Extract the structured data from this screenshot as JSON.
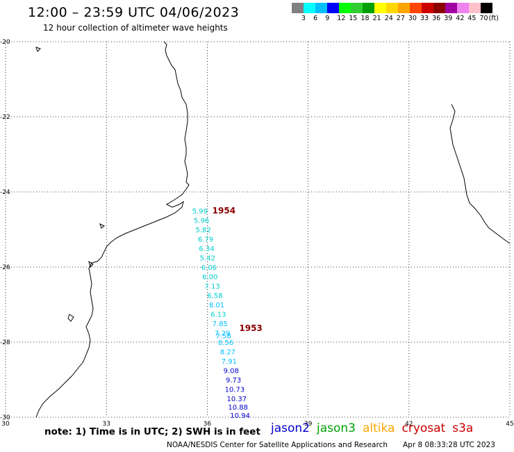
{
  "header": {
    "title": "12:00 – 23:59 UTC 04/06/2023",
    "subtitle": "12 hour collection of altimeter wave heights"
  },
  "legend": {
    "unit": "(ft)",
    "colors": [
      "#808080",
      "#00ffff",
      "#00bfff",
      "#0000ff",
      "#00ff00",
      "#32cd32",
      "#00a000",
      "#ffff00",
      "#ffd700",
      "#ffa500",
      "#ff4500",
      "#cc0000",
      "#8b0000",
      "#a000a0",
      "#ee82ee",
      "#ffc0cb",
      "#000000"
    ],
    "labels": [
      "3",
      "6",
      "9",
      "12",
      "15",
      "18",
      "21",
      "24",
      "27",
      "30",
      "33",
      "36",
      "39",
      "42",
      "45",
      "70"
    ]
  },
  "map": {
    "lon_range": [
      30,
      45
    ],
    "lat_range": [
      -30,
      -20
    ],
    "lon_ticks": [
      "30",
      "33",
      "36",
      "39",
      "42",
      "45"
    ],
    "lat_ticks": [
      "-20",
      "-22",
      "-24",
      "-26",
      "-28",
      "-30"
    ],
    "pass_labels": [
      {
        "text": "1954",
        "lon": 36.15,
        "lat": -24.57,
        "color": "#8b0000"
      },
      {
        "text": "1953",
        "lon": 36.95,
        "lat": -27.7,
        "color": "#8b0000"
      }
    ],
    "observations": [
      {
        "value": "5.99",
        "lon": 35.55,
        "lat": -24.57,
        "color": "#00cccc"
      },
      {
        "value": "5.96",
        "lon": 35.6,
        "lat": -24.82,
        "color": "#00cccc"
      },
      {
        "value": "5.82",
        "lon": 35.65,
        "lat": -25.07,
        "color": "#00cccc"
      },
      {
        "value": "6.79",
        "lon": 35.72,
        "lat": -25.32,
        "color": "#00cccc"
      },
      {
        "value": "6.34",
        "lon": 35.75,
        "lat": -25.57,
        "color": "#00cccc"
      },
      {
        "value": "5.42",
        "lon": 35.78,
        "lat": -25.82,
        "color": "#00cccc"
      },
      {
        "value": "6.06",
        "lon": 35.82,
        "lat": -26.07,
        "color": "#00cccc"
      },
      {
        "value": "6.00",
        "lon": 35.85,
        "lat": -26.32,
        "color": "#00cccc"
      },
      {
        "value": "7.13",
        "lon": 35.92,
        "lat": -26.57,
        "color": "#00cccc"
      },
      {
        "value": "6.58",
        "lon": 36.0,
        "lat": -26.82,
        "color": "#00cccc"
      },
      {
        "value": "8.01",
        "lon": 36.05,
        "lat": -27.07,
        "color": "#00bfff"
      },
      {
        "value": "6.13",
        "lon": 36.1,
        "lat": -27.32,
        "color": "#00cccc"
      },
      {
        "value": "7.85",
        "lon": 36.15,
        "lat": -27.57,
        "color": "#00bfff"
      },
      {
        "value": "7.29",
        "lon": 36.22,
        "lat": -27.82,
        "color": "#00bfff"
      },
      {
        "value": "7.58",
        "lon": 36.25,
        "lat": -27.9,
        "color": "#00bfff"
      },
      {
        "value": "8.56",
        "lon": 36.32,
        "lat": -28.07,
        "color": "#00bfff"
      },
      {
        "value": "8.27",
        "lon": 36.38,
        "lat": -28.32,
        "color": "#00bfff"
      },
      {
        "value": "7.91",
        "lon": 36.42,
        "lat": -28.57,
        "color": "#00bfff"
      },
      {
        "value": "9.08",
        "lon": 36.48,
        "lat": -28.82,
        "color": "#0000cc"
      },
      {
        "value": "9.73",
        "lon": 36.55,
        "lat": -29.07,
        "color": "#0000cc"
      },
      {
        "value": "10.73",
        "lon": 36.52,
        "lat": -29.32,
        "color": "#0000cc"
      },
      {
        "value": "10.37",
        "lon": 36.58,
        "lat": -29.57,
        "color": "#0000cc"
      },
      {
        "value": "10.88",
        "lon": 36.62,
        "lat": -29.8,
        "color": "#0000cc"
      },
      {
        "value": "10.94",
        "lon": 36.68,
        "lat": -30.02,
        "color": "#0000cc"
      }
    ]
  },
  "footer": {
    "note": "note: 1) Time is in UTC; 2) SWH is in feet",
    "satellites": [
      {
        "name": "jason2",
        "color": "#0000cc"
      },
      {
        "name": "jason3",
        "color": "#00a000"
      },
      {
        "name": "altika",
        "color": "#ffa500"
      },
      {
        "name": "cryosat",
        "color": "#cc0000"
      },
      {
        "name": "s3a",
        "color": "#cc0000"
      }
    ],
    "credit": "NOAA/NESDIS Center for Satellite Applications and Research",
    "timestamp": "Apr  8 08:33:28 UTC 2023"
  }
}
